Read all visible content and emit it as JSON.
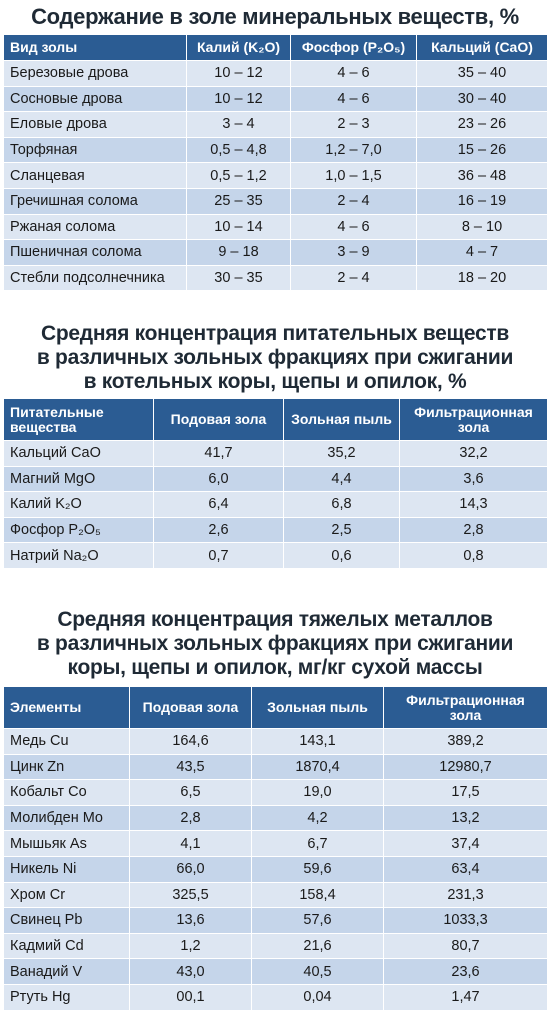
{
  "table1": {
    "title": "Содержание в золе минеральных веществ, %",
    "headers": [
      "Вид золы",
      "Калий (K₂O)",
      "Фосфор (P₂O₅)",
      "Кальций (CaO)"
    ],
    "rows": [
      [
        "Березовые дрова",
        "10 – 12",
        "4 – 6",
        "35 – 40"
      ],
      [
        "Сосновые дрова",
        "10 – 12",
        "4 – 6",
        "30 – 40"
      ],
      [
        "Еловые дрова",
        "3 – 4",
        "2 – 3",
        "23 – 26"
      ],
      [
        "Торфяная",
        "0,5 – 4,8",
        "1,2 – 7,0",
        "15 – 26"
      ],
      [
        "Сланцевая",
        "0,5 – 1,2",
        "1,0 – 1,5",
        "36 – 48"
      ],
      [
        "Гречишная солома",
        "25 – 35",
        "2 – 4",
        "16 – 19"
      ],
      [
        "Ржаная солома",
        "10 – 14",
        "4 – 6",
        "8 – 10"
      ],
      [
        "Пшеничная солома",
        "9 – 18",
        "3 – 9",
        "4 – 7"
      ],
      [
        "Стебли подсолнечника",
        "30 – 35",
        "2 – 4",
        "18 – 20"
      ]
    ]
  },
  "table2": {
    "title_lines": [
      "Средняя концентрация питательных веществ",
      "в различных зольных фракциях при сжигании",
      "в котельных коры, щепы и опилок, %"
    ],
    "headers": [
      "Питательные вещества",
      "Подовая зола",
      "Зольная пыль",
      "Фильтрационная зола"
    ],
    "rows": [
      [
        "Кальций CaO",
        "41,7",
        "35,2",
        "32,2"
      ],
      [
        "Магний MgO",
        "6,0",
        "4,4",
        "3,6"
      ],
      [
        "Калий K₂O",
        "6,4",
        "6,8",
        "14,3"
      ],
      [
        "Фосфор P₂O₅",
        "2,6",
        "2,5",
        "2,8"
      ],
      [
        "Натрий Na₂O",
        "0,7",
        "0,6",
        "0,8"
      ]
    ]
  },
  "table3": {
    "title_lines": [
      "Средняя концентрация тяжелых металлов",
      "в различных зольных фракциях при сжигании",
      "коры, щепы и опилок, мг/кг сухой массы"
    ],
    "headers": [
      "Элементы",
      "Подовая зола",
      "Зольная пыль",
      "Фильтрационная зола"
    ],
    "rows": [
      [
        "Медь Cu",
        "164,6",
        "143,1",
        "389,2"
      ],
      [
        "Цинк Zn",
        "43,5",
        "1870,4",
        "12980,7"
      ],
      [
        "Кобальт Co",
        "6,5",
        "19,0",
        "17,5"
      ],
      [
        "Молибден Mo",
        "2,8",
        "4,2",
        "13,2"
      ],
      [
        "Мышьяк As",
        "4,1",
        "6,7",
        "37,4"
      ],
      [
        "Никель Ni",
        "66,0",
        "59,6",
        "63,4"
      ],
      [
        "Хром Cr",
        "325,5",
        "158,4",
        "231,3"
      ],
      [
        "Свинец Pb",
        "13,6",
        "57,6",
        "1033,3"
      ],
      [
        "Кадмий Cd",
        "1,2",
        "21,6",
        "80,7"
      ],
      [
        "Ванадий V",
        "43,0",
        "40,5",
        "23,6"
      ],
      [
        "Ртуть Hg",
        "00,1",
        "0,04",
        "1,47"
      ]
    ]
  },
  "colors": {
    "header_bg": "#2b5c93",
    "row_light": "#dde6f2",
    "row_dark": "#c5d5ea",
    "title": "#1f2a35"
  }
}
